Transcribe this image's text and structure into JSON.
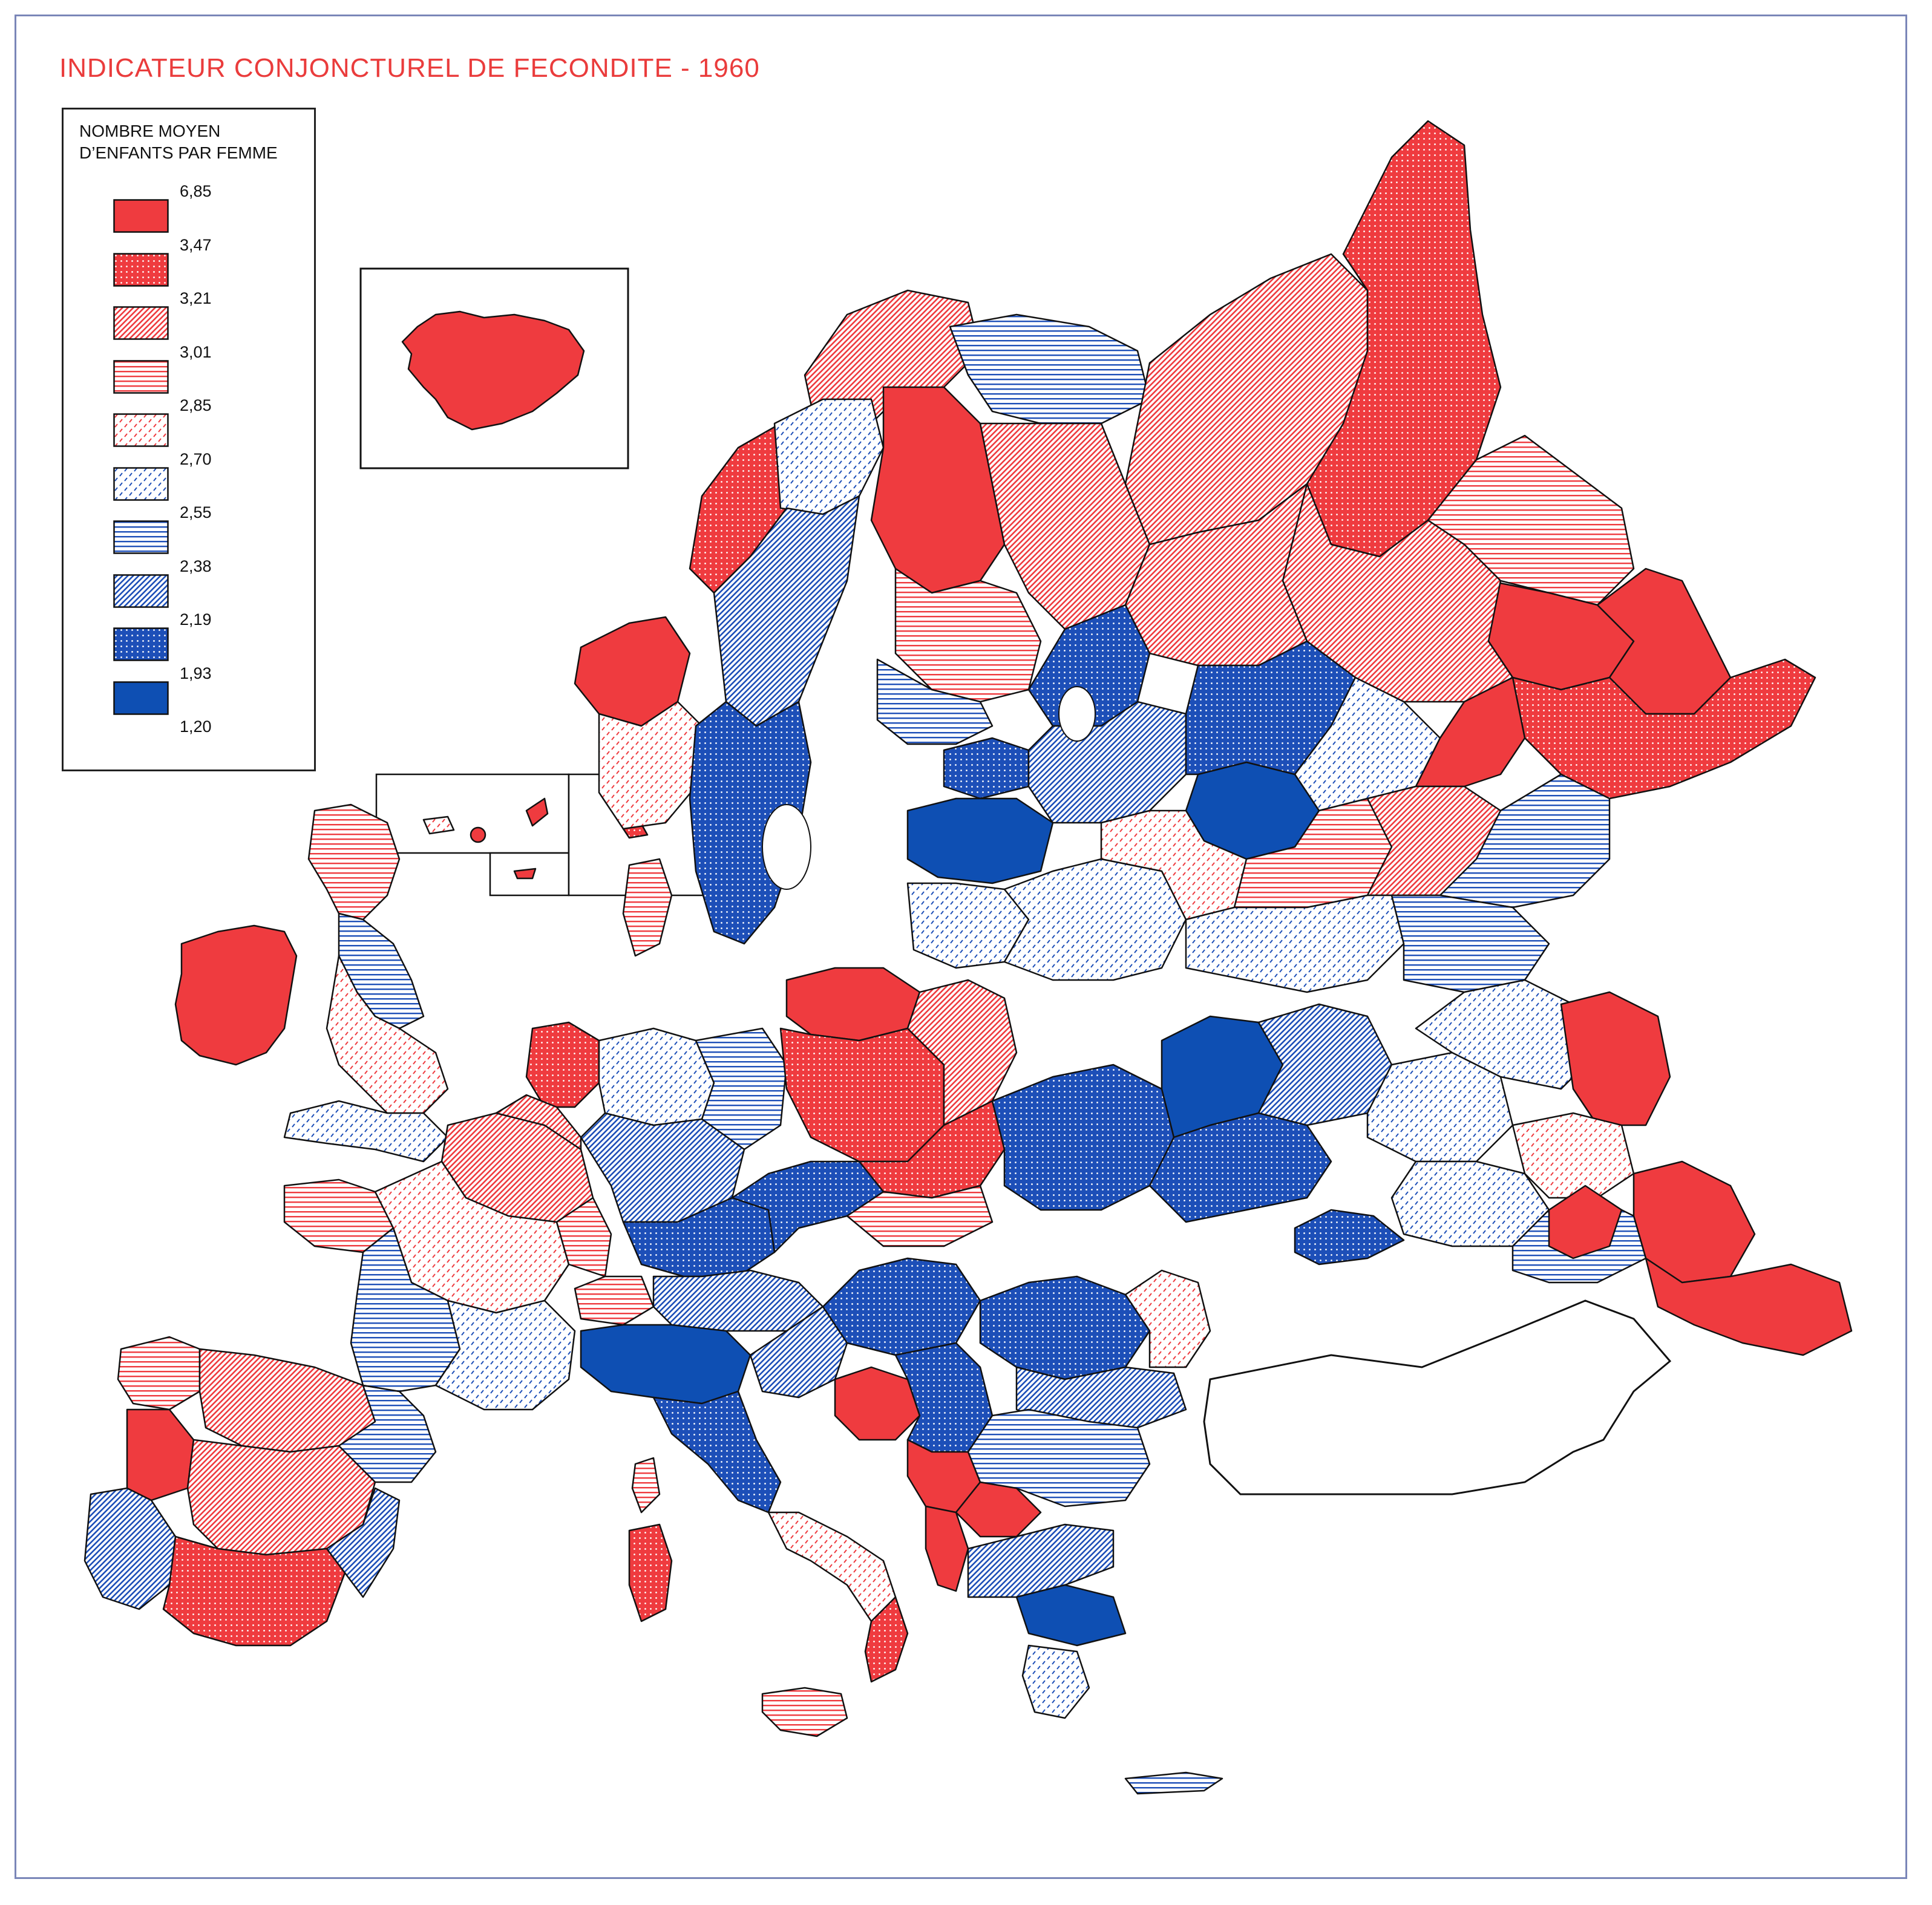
{
  "title": "INDICATEUR CONJONCTUREL DE FECONDITE - 1960",
  "legend": {
    "title_line1": "NOMBRE MOYEN",
    "title_line2": "D’ENFANTS PAR FEMME",
    "bounds": [
      "6,85",
      "3,47",
      "3,21",
      "3,01",
      "2,85",
      "2,70",
      "2,55",
      "2,38",
      "2,19",
      "1,93",
      "1,20"
    ],
    "classes": [
      {
        "key": "c1",
        "color": "#ef3b3f",
        "pattern": "solid"
      },
      {
        "key": "c2",
        "color": "#ef3b3f",
        "pattern": "dots"
      },
      {
        "key": "c3",
        "color": "#ef3b3f",
        "pattern": "diagonal"
      },
      {
        "key": "c4",
        "color": "#ef3b3f",
        "pattern": "horizontal"
      },
      {
        "key": "c5",
        "color": "#ef3b3f",
        "pattern": "dashes"
      },
      {
        "key": "c6",
        "color": "#1d4fb8",
        "pattern": "dashes"
      },
      {
        "key": "c7",
        "color": "#1d4fb8",
        "pattern": "horizontal"
      },
      {
        "key": "c8",
        "color": "#1d4fb8",
        "pattern": "diagonal"
      },
      {
        "key": "c9",
        "color": "#1d4fb8",
        "pattern": "dots"
      },
      {
        "key": "c10",
        "color": "#0e4fb3",
        "pattern": "solid"
      }
    ]
  },
  "colors": {
    "title": "#ea3c3c",
    "red": "#ef3b3f",
    "blue": "#1d4fb8",
    "outline": "#111111",
    "frame": "#7a86b8"
  },
  "insets": [
    "iceland-inset",
    "canary-islands-inset",
    "madeira-inset",
    "azores-inset"
  ]
}
